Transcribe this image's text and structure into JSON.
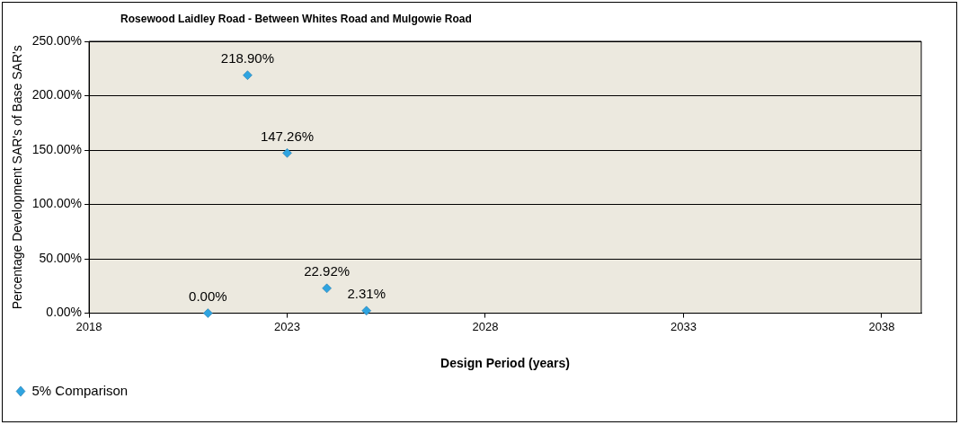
{
  "chart_data": {
    "type": "scatter",
    "title": "Rosewood Laidley Road - Between Whites Road and Mulgowie Road",
    "xlabel": "Design Period (years)",
    "ylabel": "Percentage Development SAR's of Base SAR's",
    "x": [
      2021,
      2022,
      2023,
      2024,
      2025
    ],
    "series": [
      {
        "name": "5% Comparison",
        "color": "#2fa4e0",
        "values": [
          0,
          218.9,
          147.26,
          22.92,
          2.31
        ],
        "value_labels": [
          "0.00%",
          "218.90%",
          "147.26%",
          "22.92%",
          "2.31%"
        ]
      }
    ],
    "xlim": [
      2018,
      2039
    ],
    "xticks": [
      2018,
      2023,
      2028,
      2033,
      2038
    ],
    "ylim": [
      0,
      250
    ],
    "yticks": [
      {
        "value": 0,
        "label": "0.00%"
      },
      {
        "value": 50,
        "label": "50.00%"
      },
      {
        "value": 100,
        "label": "100.00%"
      },
      {
        "value": 150,
        "label": "150.00%"
      },
      {
        "value": 200,
        "label": "200.00%"
      },
      {
        "value": 250,
        "label": "250.00%"
      }
    ],
    "grid": "y",
    "legend": "bottom left",
    "marker": "diamond"
  }
}
